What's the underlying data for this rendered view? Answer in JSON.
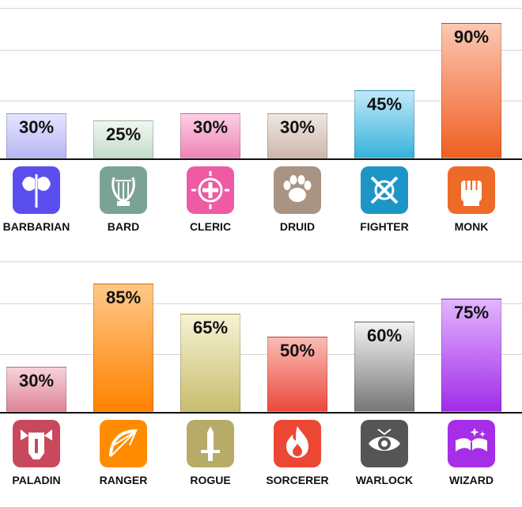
{
  "chart_data": [
    {
      "type": "bar",
      "categories": [
        "BARBARIAN",
        "BARD",
        "CLERIC",
        "DRUID",
        "FIGHTER",
        "MONK"
      ],
      "values": [
        30,
        25,
        30,
        30,
        45,
        90
      ],
      "value_labels": [
        "30%",
        "25%",
        "30%",
        "30%",
        "45%",
        "90%"
      ],
      "ylim": [
        0,
        100
      ],
      "grid": true,
      "colors": [
        [
          "#e4e4ff",
          "#b8b6f4"
        ],
        [
          "#eef7f0",
          "#c4dccb"
        ],
        [
          "#fdd0e6",
          "#ee84b5"
        ],
        [
          "#f0e6e1",
          "#cdb8ae"
        ],
        [
          "#bfe9fb",
          "#38b2da"
        ],
        [
          "#fcc7b1",
          "#ef5f22"
        ]
      ],
      "icons": [
        {
          "name": "axe-icon",
          "color": "#5a4fee"
        },
        {
          "name": "lyre-icon",
          "color": "#7aa395"
        },
        {
          "name": "cleric-cross-icon",
          "color": "#ee5ba4"
        },
        {
          "name": "paw-icon",
          "color": "#a99382"
        },
        {
          "name": "crossed-swords-icon",
          "color": "#1d95c6"
        },
        {
          "name": "fist-icon",
          "color": "#ee6a28"
        }
      ]
    },
    {
      "type": "bar",
      "categories": [
        "PALADIN",
        "RANGER",
        "ROGUE",
        "SORCERER",
        "WARLOCK",
        "WIZARD"
      ],
      "values": [
        30,
        85,
        65,
        50,
        60,
        75
      ],
      "value_labels": [
        "30%",
        "85%",
        "65%",
        "50%",
        "60%",
        "75%"
      ],
      "ylim": [
        0,
        100
      ],
      "grid": true,
      "colors": [
        [
          "#f8d2da",
          "#dd8595"
        ],
        [
          "#ffc888",
          "#ff8200"
        ],
        [
          "#f7f2d4",
          "#c8bd6e"
        ],
        [
          "#f9bcb4",
          "#ec4a3c"
        ],
        [
          "#f2f2f2",
          "#777777"
        ],
        [
          "#e3b5ff",
          "#a12ce8"
        ]
      ],
      "icons": [
        {
          "name": "winged-helmet-icon",
          "color": "#c8485e"
        },
        {
          "name": "bow-icon",
          "color": "#ff8c00"
        },
        {
          "name": "dagger-icon",
          "color": "#b7ab68"
        },
        {
          "name": "flame-icon",
          "color": "#ec4733"
        },
        {
          "name": "eye-icon",
          "color": "#555555"
        },
        {
          "name": "spellbook-icon",
          "color": "#a62ee8"
        }
      ]
    }
  ]
}
